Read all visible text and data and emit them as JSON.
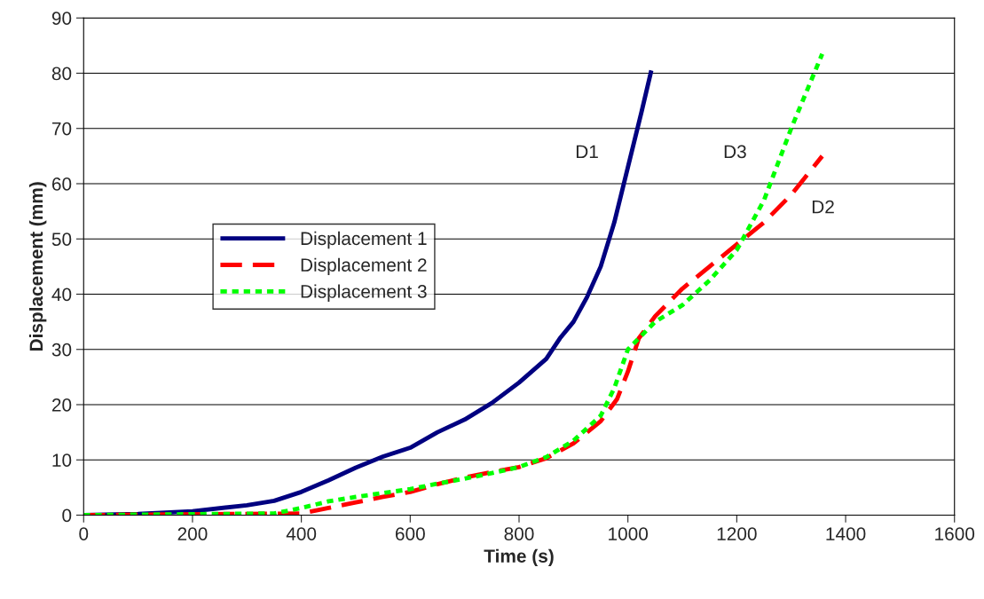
{
  "chart_data": {
    "type": "line",
    "xlabel": "Time (s)",
    "ylabel": "Displacement (mm)",
    "xlim": [
      0,
      1600
    ],
    "xticks": [
      0,
      200,
      400,
      600,
      800,
      1000,
      1200,
      1400,
      1600
    ],
    "ylim": [
      0,
      90
    ],
    "yticks": [
      0,
      10,
      20,
      30,
      40,
      50,
      60,
      70,
      80,
      90
    ],
    "grid": "y",
    "legend": "left",
    "marker": "none",
    "annotations": [
      "D1",
      "D3",
      "D2"
    ],
    "series": [
      {
        "name": "Displacement 1",
        "color": "#000080",
        "line_style": "solid",
        "x": [
          0,
          100,
          200,
          300,
          350,
          400,
          450,
          500,
          550,
          600,
          650,
          700,
          750,
          800,
          850,
          875,
          900,
          925,
          950,
          975,
          1000,
          1025,
          1043
        ],
        "values": [
          0,
          0.2,
          0.7,
          1.8,
          2.6,
          4.2,
          6.3,
          8.6,
          10.6,
          12.2,
          15,
          17.3,
          20.3,
          24,
          28.3,
          32,
          35,
          39.5,
          45,
          53,
          63,
          73,
          80.5
        ]
      },
      {
        "name": "Displacement 2",
        "color": "#ff0000",
        "line_style": "dashed",
        "x": [
          0,
          400,
          450,
          500,
          550,
          600,
          650,
          700,
          750,
          800,
          850,
          900,
          950,
          980,
          1000,
          1020,
          1050,
          1100,
          1150,
          1200,
          1250,
          1300,
          1357
        ],
        "values": [
          0,
          0.3,
          1.3,
          2.3,
          3.3,
          4.2,
          5.6,
          6.8,
          7.8,
          8.7,
          10.3,
          13,
          17,
          21,
          26,
          32,
          36,
          41,
          45,
          49,
          53,
          58,
          65
        ]
      },
      {
        "name": "Displacement 3",
        "color": "#00ff00",
        "line_style": "dotted",
        "x": [
          0,
          350,
          400,
          450,
          500,
          550,
          600,
          650,
          700,
          750,
          800,
          850,
          900,
          950,
          975,
          1000,
          1050,
          1100,
          1150,
          1200,
          1250,
          1300,
          1357
        ],
        "values": [
          0,
          0.3,
          1.3,
          2.5,
          3.3,
          4,
          4.7,
          5.7,
          6.6,
          7.6,
          8.7,
          10.5,
          13.5,
          18,
          23,
          30,
          35,
          38,
          42.5,
          48,
          57,
          70,
          83.5
        ]
      }
    ]
  }
}
